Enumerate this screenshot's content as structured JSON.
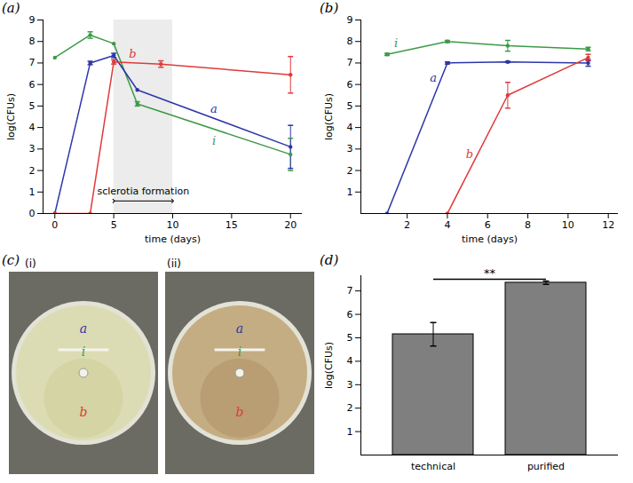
{
  "chart_data": [
    {
      "panel": "(a)",
      "type": "line",
      "marker": "dot",
      "x_label": "time (days)",
      "y_label": "log(CFUs)",
      "xlim": [
        -1,
        21
      ],
      "xticks": [
        0,
        5,
        10,
        15,
        20
      ],
      "ylim": [
        0,
        9
      ],
      "yticks": [
        0,
        1,
        2,
        3,
        4,
        5,
        6,
        7,
        8,
        9
      ],
      "annotation": {
        "text": "sclerotia formation",
        "x_range": [
          5,
          10
        ]
      },
      "series": [
        {
          "name": "i",
          "color": "#3c9a48",
          "x": [
            0,
            3,
            5,
            7,
            20
          ],
          "values": [
            7.25,
            8.3,
            7.9,
            5.1,
            2.75
          ],
          "errors": [
            null,
            0.15,
            null,
            0.1,
            0.75
          ]
        },
        {
          "name": "a",
          "color": "#2d36a8",
          "x": [
            0,
            3,
            5,
            7,
            20
          ],
          "values": [
            0,
            7.0,
            7.35,
            5.75,
            3.1
          ],
          "errors": [
            null,
            0.08,
            0.1,
            null,
            1.0
          ]
        },
        {
          "name": "b",
          "color": "#e03a3a",
          "x": [
            0,
            3,
            5,
            9,
            20
          ],
          "values": [
            0,
            0,
            7.05,
            6.95,
            6.45
          ],
          "errors": [
            null,
            null,
            0.1,
            0.15,
            0.85
          ]
        }
      ]
    },
    {
      "panel": "(b)",
      "type": "line",
      "marker": "dot",
      "x_label": "time (days)",
      "y_label": "log(CFUs)",
      "xlim": [
        -0.3,
        12.5
      ],
      "xticks": [
        2,
        4,
        6,
        8,
        10,
        12
      ],
      "ylim": [
        0,
        9
      ],
      "yticks": [
        1,
        2,
        3,
        4,
        5,
        6,
        7,
        8,
        9
      ],
      "series": [
        {
          "name": "i",
          "color": "#3c9a48",
          "x": [
            1,
            4,
            7,
            11
          ],
          "values": [
            7.4,
            8.0,
            7.8,
            7.65
          ],
          "errors": [
            0.05,
            0.05,
            0.25,
            0.08
          ]
        },
        {
          "name": "a",
          "color": "#2d36a8",
          "x": [
            1,
            4,
            7,
            11
          ],
          "values": [
            0,
            7.0,
            7.05,
            7.0
          ],
          "errors": [
            null,
            0.05,
            0.03,
            0.15
          ]
        },
        {
          "name": "b",
          "color": "#e03a3a",
          "x": [
            4,
            7,
            11
          ],
          "values": [
            0,
            5.5,
            7.25
          ],
          "errors": [
            null,
            0.6,
            0.15
          ]
        }
      ]
    },
    {
      "panel": "(d)",
      "type": "bar",
      "y_label": "log(CFUs)",
      "categories": [
        "technical",
        "purified"
      ],
      "values": [
        5.15,
        7.35
      ],
      "errors": [
        0.5,
        0.07
      ],
      "color": "#7f7f7f",
      "ylim": [
        0,
        7.65
      ],
      "yticks": [
        1,
        2,
        3,
        4,
        5,
        6,
        7
      ],
      "significance": {
        "text": "**",
        "between": [
          "technical",
          "purified"
        ],
        "y": 7.5
      }
    }
  ],
  "photos": {
    "panel": "(c)",
    "dishes": [
      {
        "label": "(i)",
        "marks": [
          {
            "text": "a",
            "color": "#2d36a8"
          },
          {
            "text": "i",
            "color": "#3c9a48"
          },
          {
            "text": "b",
            "color": "#e03a3a"
          }
        ]
      },
      {
        "label": "(ii)",
        "marks": [
          {
            "text": "a",
            "color": "#2d36a8"
          },
          {
            "text": "i",
            "color": "#3c9a48"
          },
          {
            "text": "b",
            "color": "#e03a3a"
          }
        ]
      }
    ]
  }
}
